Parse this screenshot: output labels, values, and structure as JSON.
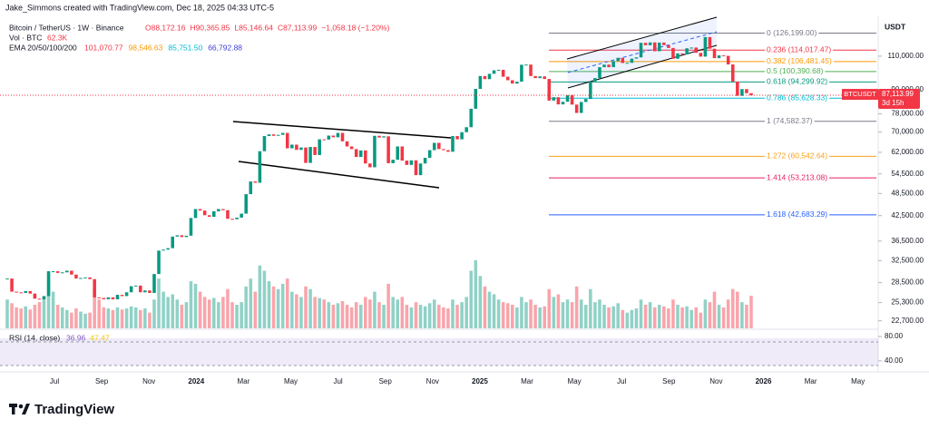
{
  "watermark": "Jake_Simmons created with TradingView.com, Dec 18, 2025 04:33 UTC-5",
  "chart_data": {
    "type": "candlestick",
    "title": "Bitcoin / TetherUS · 1W · Binance",
    "ohlc_labels": [
      "O88,172.16",
      "H90,365.85",
      "L85,146.64",
      "C87,113.99",
      "−1,058.18 (−1.20%)"
    ],
    "volume_title": "Vol · BTC",
    "volume_label": "62.3K",
    "ema_title": "EMA 20/50/100/200",
    "ema_labels": [
      "101,070.77",
      "98,546.63",
      "85,751.50",
      "66,792.88"
    ],
    "ema_colors": [
      "#f23645",
      "#ff9800",
      "#00bcd4",
      "#3f3fd6"
    ],
    "colors": {
      "up": "#089981",
      "down": "#f23645"
    },
    "log_scale": true,
    "y_unit": "USDT",
    "ylim": [
      21700,
      139500
    ],
    "yticks": [
      {
        "value": 110000,
        "label": "110,000.00"
      },
      {
        "value": 90000,
        "label": "90,000.00"
      },
      {
        "value": 78000,
        "label": "78,000.00"
      },
      {
        "value": 70000,
        "label": "70,000.00"
      },
      {
        "value": 62000,
        "label": "62,000.00"
      },
      {
        "value": 54500,
        "label": "54,500.00"
      },
      {
        "value": 48500,
        "label": "48,500.00"
      },
      {
        "value": 42500,
        "label": "42,500.00"
      },
      {
        "value": 36500,
        "label": "36,500.00"
      },
      {
        "value": 32500,
        "label": "32,500.00"
      },
      {
        "value": 28500,
        "label": "28,500.00"
      },
      {
        "value": 25300,
        "label": "25,300.00"
      },
      {
        "value": 22700,
        "label": "22,700.00"
      }
    ],
    "x_labels": [
      "Jul",
      "Sep",
      "Nov",
      "2024",
      "Mar",
      "May",
      "Jul",
      "Sep",
      "Nov",
      "2025",
      "Mar",
      "May",
      "Jul",
      "Sep",
      "Nov",
      "2026",
      "Mar",
      "May"
    ],
    "values": [
      29200,
      27000,
      26900,
      26800,
      27100,
      26700,
      25900,
      25800,
      26300,
      30500,
      30500,
      30200,
      30300,
      30600,
      29900,
      29200,
      29300,
      29400,
      29100,
      26100,
      26000,
      25800,
      26100,
      25800,
      26500,
      26300,
      26900,
      27900,
      28000,
      26900,
      27200,
      26800,
      30000,
      34500,
      34700,
      35000,
      37500,
      37800,
      37400,
      37700,
      41900,
      44200,
      43800,
      42600,
      42200,
      43600,
      44200,
      43900,
      41700,
      41600,
      42000,
      43000,
      48300,
      52100,
      51700,
      62400,
      68300,
      69000,
      68400,
      68800,
      69600,
      63500,
      64900,
      62900,
      63800,
      58200,
      64000,
      61000,
      67000,
      66900,
      68500,
      67800,
      69600,
      66200,
      64200,
      63200,
      60300,
      62700,
      58000,
      56700,
      68400,
      67700,
      68200,
      58100,
      59300,
      64200,
      59000,
      57500,
      59100,
      54100,
      58000,
      60000,
      62800,
      65600,
      63200,
      62800,
      62200,
      68300,
      67000,
      69900,
      72000,
      80400,
      90500,
      97700,
      95900,
      99000,
      101100,
      101400,
      97300,
      95300,
      93400,
      94500,
      104500,
      104600,
      97700,
      96500,
      97500,
      96000,
      84400,
      86100,
      82500,
      83800,
      87200,
      82400,
      78400,
      83700,
      85200,
      94600,
      96500,
      103000,
      104600,
      103000,
      106800,
      108900,
      105600,
      105700,
      108400,
      109200,
      119100,
      117400,
      119400,
      113300,
      119300,
      117500,
      115500,
      108300,
      111800,
      111100,
      115300,
      115800,
      112200,
      109700,
      123300,
      115000,
      108700,
      110500,
      110200,
      104700,
      94500,
      86800,
      90400,
      88200,
      87113.99
    ],
    "volumes": [
      55,
      48,
      40,
      38,
      42,
      36,
      45,
      50,
      60,
      95,
      70,
      45,
      40,
      35,
      30,
      38,
      32,
      28,
      30,
      75,
      55,
      40,
      38,
      35,
      40,
      36,
      38,
      42,
      40,
      35,
      38,
      30,
      55,
      95,
      70,
      60,
      65,
      55,
      45,
      50,
      90,
      85,
      70,
      60,
      55,
      58,
      50,
      60,
      75,
      50,
      45,
      50,
      80,
      95,
      70,
      120,
      110,
      90,
      80,
      75,
      85,
      95,
      70,
      65,
      60,
      80,
      75,
      60,
      58,
      55,
      50,
      45,
      48,
      52,
      45,
      40,
      50,
      45,
      60,
      55,
      70,
      50,
      45,
      85,
      60,
      55,
      60,
      45,
      40,
      50,
      45,
      42,
      48,
      55,
      45,
      40,
      38,
      55,
      45,
      50,
      60,
      110,
      130,
      100,
      80,
      70,
      65,
      55,
      50,
      48,
      45,
      40,
      60,
      50,
      55,
      45,
      40,
      42,
      75,
      60,
      65,
      50,
      55,
      50,
      80,
      55,
      45,
      75,
      50,
      55,
      45,
      40,
      42,
      48,
      35,
      30,
      35,
      38,
      55,
      45,
      50,
      40,
      45,
      42,
      38,
      55,
      45,
      40,
      42,
      35,
      40,
      30,
      55,
      50,
      70,
      45,
      40,
      55,
      75,
      70,
      50,
      45,
      62.3
    ],
    "fib_levels": [
      {
        "value": 126199.0,
        "label": "0 (126,199.00)",
        "color": "#787b86"
      },
      {
        "value": 114017.47,
        "label": "0.236 (114,017.47)",
        "color": "#f23645"
      },
      {
        "value": 106481.45,
        "label": "0.382 (106,481.45)",
        "color": "#ff9800"
      },
      {
        "value": 100390.68,
        "label": "0.5 (100,390.68)",
        "color": "#4caf50"
      },
      {
        "value": 94299.92,
        "label": "0.618 (94,299.92)",
        "color": "#089981"
      },
      {
        "value": 85628.33,
        "label": "0.786 (85,628.33)",
        "color": "#00bcd4"
      },
      {
        "value": 74582.37,
        "label": "1 (74,582.37)",
        "color": "#787b86"
      },
      {
        "value": 60542.64,
        "label": "1.272 (60,542.64)",
        "color": "#f7a21b"
      },
      {
        "value": 53213.08,
        "label": "1.414 (53,213.08)",
        "color": "#e91e63"
      },
      {
        "value": 42683.29,
        "label": "1.618 (42,683.29)",
        "color": "#2962ff"
      }
    ],
    "last_price": {
      "symbol": "BTCUSDT",
      "label": "87,113.99",
      "countdown": "3d 15h",
      "color": "#f23645"
    },
    "rsi": {
      "title": "RSI (14, close)",
      "labels": [
        "36.96",
        "47.47"
      ],
      "colors": [
        "#7e57c2",
        "#f7c600"
      ],
      "ylim": [
        25,
        89
      ],
      "yticks": [
        {
          "value": 80,
          "label": "80.00"
        },
        {
          "value": 40,
          "label": "40.00"
        }
      ]
    }
  },
  "footer": {
    "brand": "TradingView"
  }
}
